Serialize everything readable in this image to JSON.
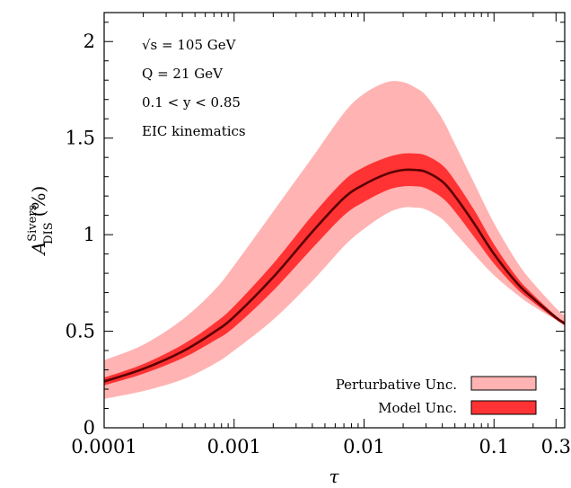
{
  "chart_data": {
    "type": "area",
    "xscale": "log",
    "xlim": [
      0.0001,
      0.35
    ],
    "ylim": [
      0,
      2.15
    ],
    "xlabel": "τ",
    "ylabel": {
      "main": "A",
      "sup": "Sivers",
      "sub": "DIS",
      "unit": "(%)"
    },
    "x_ticks": [
      {
        "value": 0.0001,
        "label": "0.0001"
      },
      {
        "value": 0.001,
        "label": "0.001"
      },
      {
        "value": 0.01,
        "label": "0.01"
      },
      {
        "value": 0.1,
        "label": "0.1"
      },
      {
        "value": 0.3,
        "label": "0.3"
      }
    ],
    "y_ticks": [
      {
        "value": 0,
        "label": "0"
      },
      {
        "value": 0.5,
        "label": "0.5"
      },
      {
        "value": 1,
        "label": "1"
      },
      {
        "value": 1.5,
        "label": "1.5"
      },
      {
        "value": 2,
        "label": "2"
      }
    ],
    "annotations": [
      "√s = 105 GeV",
      "Q = 21 GeV",
      "0.1 < y < 0.85",
      "EIC kinematics"
    ],
    "legend_position": "bottom-right",
    "x": [
      0.0001,
      0.0002,
      0.0004,
      0.0007,
      0.001,
      0.002,
      0.004,
      0.007,
      0.01,
      0.015,
      0.02,
      0.025,
      0.03,
      0.04,
      0.05,
      0.07,
      0.1,
      0.15,
      0.2,
      0.3,
      0.35
    ],
    "series": [
      {
        "name": "Perturbative Unc.",
        "color": "#ffb3b3",
        "stroke": "#000000",
        "lower": [
          0.15,
          0.19,
          0.25,
          0.33,
          0.4,
          0.56,
          0.76,
          0.94,
          1.03,
          1.11,
          1.14,
          1.14,
          1.13,
          1.08,
          1.01,
          0.9,
          0.79,
          0.69,
          0.63,
          0.56,
          0.54
        ],
        "upper": [
          0.35,
          0.43,
          0.56,
          0.71,
          0.84,
          1.12,
          1.4,
          1.63,
          1.73,
          1.79,
          1.79,
          1.76,
          1.72,
          1.6,
          1.47,
          1.27,
          1.06,
          0.86,
          0.75,
          0.62,
          0.58
        ]
      },
      {
        "name": "Model Unc.",
        "color": "#ff3333",
        "stroke": "#000000",
        "lower": [
          0.22,
          0.28,
          0.36,
          0.45,
          0.52,
          0.71,
          0.93,
          1.1,
          1.17,
          1.23,
          1.25,
          1.25,
          1.24,
          1.19,
          1.12,
          0.99,
          0.85,
          0.72,
          0.65,
          0.56,
          0.53
        ],
        "upper": [
          0.26,
          0.33,
          0.43,
          0.54,
          0.63,
          0.85,
          1.1,
          1.28,
          1.35,
          1.4,
          1.42,
          1.42,
          1.41,
          1.36,
          1.28,
          1.13,
          0.95,
          0.78,
          0.69,
          0.58,
          0.55
        ]
      }
    ],
    "central": {
      "color": "#5a0000",
      "values": [
        0.24,
        0.305,
        0.395,
        0.495,
        0.575,
        0.78,
        1.015,
        1.19,
        1.26,
        1.315,
        1.335,
        1.335,
        1.325,
        1.275,
        1.2,
        1.06,
        0.9,
        0.75,
        0.67,
        0.57,
        0.54
      ]
    }
  }
}
